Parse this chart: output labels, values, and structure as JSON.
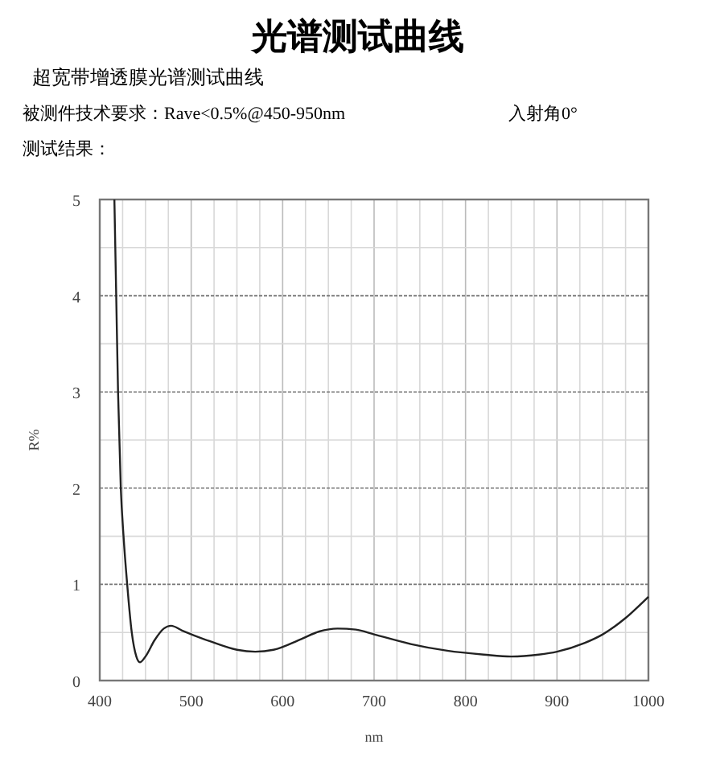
{
  "chart_data": {
    "type": "line",
    "title": "光谱测试曲线",
    "subtitle": "超宽带增透膜光谱测试曲线",
    "annotations": [
      "被测件技术要求：Rave<0.5%@450-950nm",
      "入射角0°",
      "测试结果："
    ],
    "xlabel": "nm",
    "ylabel": "R%",
    "xlim": [
      400,
      1000
    ],
    "ylim": [
      0,
      5
    ],
    "xticks": [
      400,
      {
        "value": 425,
        "label": null
      },
      {
        "value": 450,
        "label": null
      },
      {
        "value": 475,
        "label": null
      },
      500,
      {
        "value": 525,
        "label": null
      },
      {
        "value": 550,
        "label": null
      },
      {
        "value": 575,
        "label": null
      },
      600,
      {
        "value": 625,
        "label": null
      },
      {
        "value": 650,
        "label": null
      },
      {
        "value": 675,
        "label": null
      },
      700,
      {
        "value": 725,
        "label": null
      },
      {
        "value": 750,
        "label": null
      },
      {
        "value": 775,
        "label": null
      },
      800,
      {
        "value": 825,
        "label": null
      },
      {
        "value": 850,
        "label": null
      },
      {
        "value": 875,
        "label": null
      },
      900,
      {
        "value": 925,
        "label": null
      },
      {
        "value": 950,
        "label": null
      },
      {
        "value": 975,
        "label": null
      },
      1000
    ],
    "yticks": [
      0,
      {
        "value": 0.5,
        "label": null
      },
      1,
      {
        "value": 1.5,
        "label": null
      },
      2,
      {
        "value": 2.5,
        "label": null
      },
      3,
      {
        "value": 3.5,
        "label": null
      },
      4,
      {
        "value": 4.5,
        "label": null
      },
      5
    ],
    "grid": true,
    "marker": "none",
    "line_style": "solid",
    "series": [
      {
        "color": "#222222",
        "x": [
          416,
          418,
          420,
          423,
          426,
          430,
          435,
          440,
          444,
          450,
          460,
          470,
          478,
          490,
          520,
          550,
          570,
          590,
          620,
          640,
          660,
          680,
          700,
          740,
          780,
          820,
          850,
          880,
          900,
          930,
          950,
          975,
          1000
        ],
        "values": [
          5,
          4,
          3,
          2,
          1.5,
          1,
          0.5,
          0.25,
          0.19,
          0.25,
          0.42,
          0.54,
          0.57,
          0.52,
          0.41,
          0.32,
          0.3,
          0.32,
          0.43,
          0.51,
          0.54,
          0.53,
          0.48,
          0.38,
          0.31,
          0.27,
          0.25,
          0.27,
          0.3,
          0.39,
          0.48,
          0.65,
          0.87
        ]
      }
    ]
  }
}
